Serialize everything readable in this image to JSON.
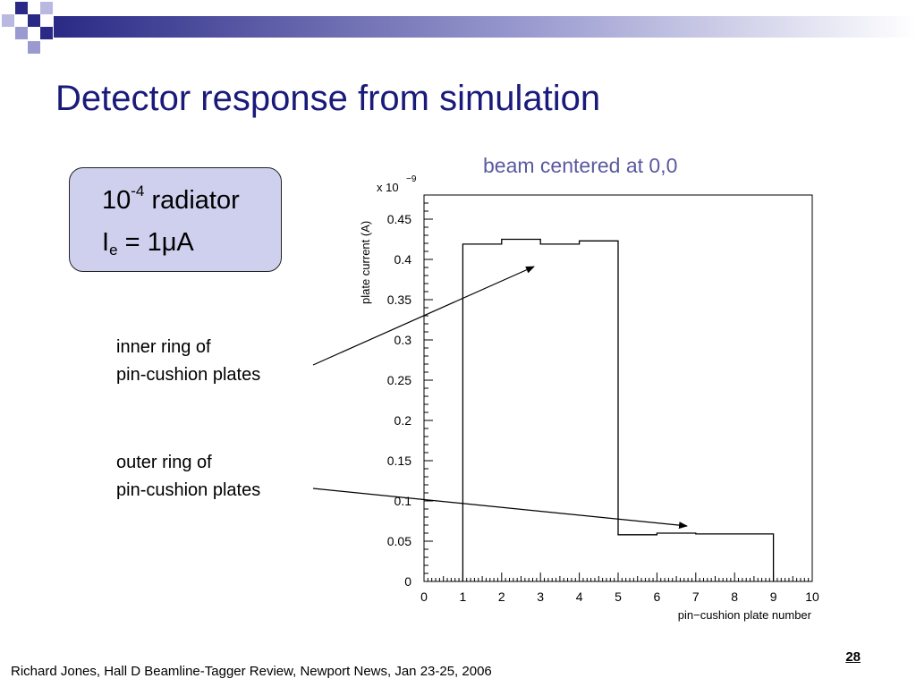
{
  "slide": {
    "title": "Detector response from simulation",
    "caption": "beam centered at 0,0",
    "box": {
      "line1_base": "10",
      "line1_exp": "-4",
      "line1_rest": " radiator",
      "line2_var": "I",
      "line2_sub": "e",
      "line2_rest": " = 1μA"
    },
    "annotations": {
      "inner": [
        "inner ring of",
        "pin-cushion plates"
      ],
      "outer": [
        "outer ring of",
        "pin-cushion plates"
      ]
    },
    "footer": "Richard Jones, Hall D Beamline-Tagger Review, Newport News, Jan 23-25, 2006",
    "page_number": "28",
    "colors": {
      "title": "#1a1a7a",
      "caption": "#5a5aa0",
      "box_fill": "#cfd0ee",
      "deco_dark": "#2a2a86",
      "deco_light": "#9a9ad0"
    }
  },
  "chart_data": {
    "type": "histogram-step",
    "title": "",
    "xlabel": "pin−cushion plate number",
    "ylabel": "plate current (A)",
    "y_multiplier": "x 10",
    "y_multiplier_exp": "−9",
    "xlim": [
      0,
      10
    ],
    "ylim": [
      0,
      0.48
    ],
    "x_ticks": [
      0,
      1,
      2,
      3,
      4,
      5,
      6,
      7,
      8,
      9,
      10
    ],
    "x_tick_labels": [
      "0",
      "1",
      "2",
      "3",
      "4",
      "5",
      "6",
      "7",
      "8",
      "9",
      "10"
    ],
    "y_ticks": [
      0,
      0.05,
      0.1,
      0.15,
      0.2,
      0.25,
      0.3,
      0.35,
      0.4,
      0.45
    ],
    "y_tick_labels": [
      "0",
      "0.05",
      "0.1",
      "0.15",
      "0.2",
      "0.25",
      "0.3",
      "0.35",
      "0.4",
      "0.45"
    ],
    "bin_edges": [
      1,
      2,
      3,
      4,
      5,
      6,
      7,
      8,
      9
    ],
    "values": [
      0.419,
      0.425,
      0.419,
      0.423,
      0.058,
      0.06,
      0.059,
      0.059
    ],
    "annotations": [
      {
        "text": "inner ring of pin-cushion plates",
        "points_to": [
          3.9,
          0.385
        ]
      },
      {
        "text": "outer ring of pin-cushion plates",
        "points_to": [
          6.9,
          0.058
        ]
      }
    ]
  }
}
